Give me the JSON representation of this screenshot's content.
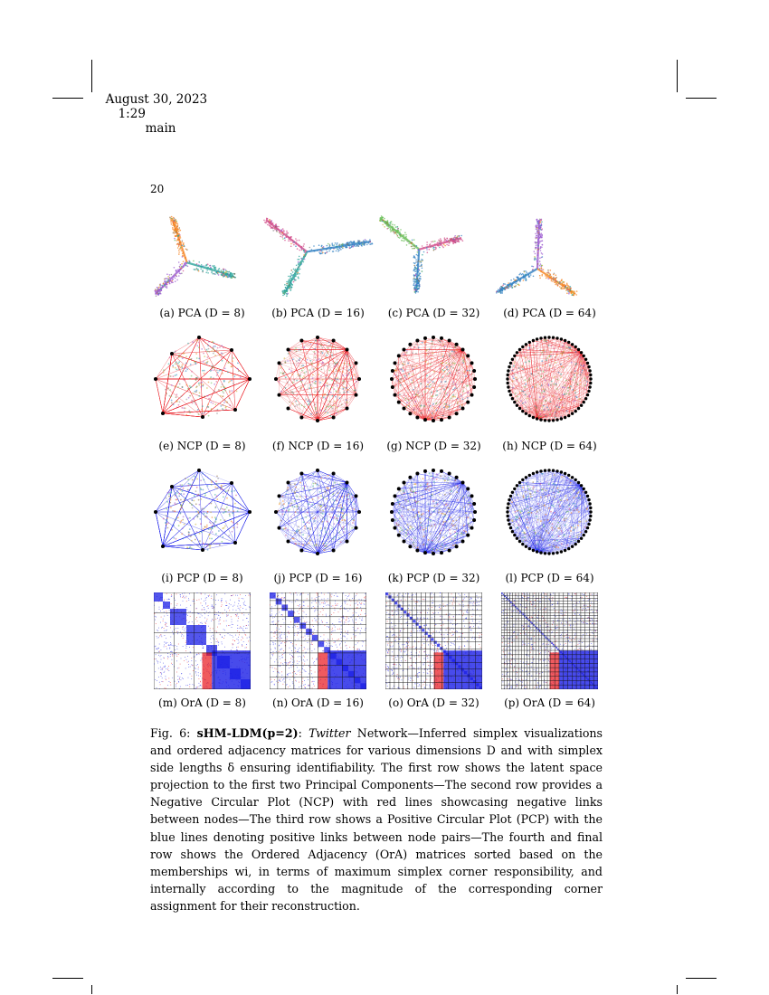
{
  "header": {
    "date": "August 30, 2023",
    "time": "1:29",
    "label": "main"
  },
  "page_number": "20",
  "panels": [
    {
      "id": "a",
      "type": "pca",
      "caption": "(a) PCA (D = 8)"
    },
    {
      "id": "b",
      "type": "pca",
      "caption": "(b) PCA (D = 16)"
    },
    {
      "id": "c",
      "type": "pca",
      "caption": "(c) PCA (D = 32)"
    },
    {
      "id": "d",
      "type": "pca",
      "caption": "(d) PCA (D = 64)"
    },
    {
      "id": "e",
      "type": "ncp",
      "caption": "(e) NCP (D = 8)"
    },
    {
      "id": "f",
      "type": "ncp",
      "caption": "(f) NCP (D = 16)"
    },
    {
      "id": "g",
      "type": "ncp",
      "caption": "(g) NCP (D = 32)"
    },
    {
      "id": "h",
      "type": "ncp",
      "caption": "(h) NCP (D = 64)"
    },
    {
      "id": "i",
      "type": "pcp",
      "caption": "(i) PCP (D = 8)"
    },
    {
      "id": "j",
      "type": "pcp",
      "caption": "(j) PCP (D = 16)"
    },
    {
      "id": "k",
      "type": "pcp",
      "caption": "(k) PCP (D = 32)"
    },
    {
      "id": "l",
      "type": "pcp",
      "caption": "(l) PCP (D = 64)"
    },
    {
      "id": "m",
      "type": "ora",
      "caption": "(m) OrA (D = 8)"
    },
    {
      "id": "n",
      "type": "ora",
      "caption": "(n) OrA (D = 16)"
    },
    {
      "id": "o",
      "type": "ora",
      "caption": "(o) OrA (D = 32)"
    },
    {
      "id": "p",
      "type": "ora",
      "caption": "(p) OrA (D = 64)"
    }
  ],
  "caption": {
    "label": "Fig. 6:",
    "model": "sHM-LDM(p=2)",
    "colon": ":",
    "network": "Twitter",
    "text": "Network—Inferred simplex visualizations and ordered adjacency matrices for various dimensions D and with simplex side lengths δ ensuring identifiability. The first row shows the latent space projection to the first two Principal Components—The second row provides a Negative Circular Plot (NCP) with red lines showcasing negative links between nodes—The third row shows a Positive Circular Plot (PCP) with the blue lines denoting positive links between node pairs—The fourth and final row shows the Ordered Adjacency (OrA) matrices sorted based on the memberships wi, in terms of maximum simplex corner responsibility, and internally according to the magnitude of the corresponding corner assignment for their reconstruction."
  },
  "colors": {
    "negative": "#e8141b",
    "positive": "#1a1ee6",
    "palette": [
      "#f5821f",
      "#9b59d0",
      "#2aa39a",
      "#2f7fc1",
      "#6bbf59",
      "#d14c8a",
      "#8c6d3f",
      "#c9b037",
      "#888888"
    ]
  }
}
